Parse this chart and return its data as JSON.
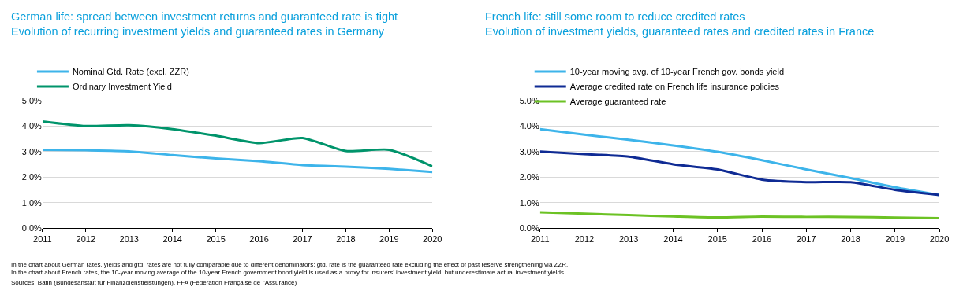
{
  "chart_data": [
    {
      "type": "line",
      "title": "German life: spread between investment returns and guaranteed rate is tight",
      "subtitle": "Evolution of recurring investment yields and guaranteed rates in Germany",
      "x": [
        2011,
        2012,
        2013,
        2014,
        2015,
        2016,
        2017,
        2018,
        2019,
        2020
      ],
      "xlim": [
        2011,
        2020
      ],
      "xticks": [
        2011,
        2012,
        2013,
        2014,
        2015,
        2016,
        2017,
        2018,
        2019,
        2020
      ],
      "ylim": [
        0,
        5
      ],
      "yticks": [
        {
          "value": 0,
          "label": "0.0%"
        },
        {
          "value": 1,
          "label": "1.0%"
        },
        {
          "value": 2,
          "label": "2.0%"
        },
        {
          "value": 3,
          "label": "3.0%"
        },
        {
          "value": 4,
          "label": "4.0%"
        },
        {
          "value": 5,
          "label": "5.0%"
        }
      ],
      "grid": "y",
      "legend": "top left",
      "marker": "none",
      "line_style": "solid",
      "series": [
        {
          "name": "Nominal Gtd. Rate (excl. ZZR)",
          "color": "#3db4ea",
          "values": [
            3.07,
            3.05,
            3.01,
            2.86,
            2.73,
            2.62,
            2.47,
            2.41,
            2.32,
            2.2
          ]
        },
        {
          "name": "Ordinary Investment Yield",
          "color": "#00946b",
          "values": [
            4.18,
            4.0,
            4.03,
            3.88,
            3.62,
            3.33,
            3.53,
            3.02,
            3.07,
            2.42
          ]
        }
      ],
      "annotations": [
        "In the chart about German rates, yields and gtd. rates are not fully comparable due to different denominators; gtd. rate is the guaranteed rate excluding the effect of past reserve strengthening via ZZR. In the chart about French rates, the 10-year moving average of the 10-year French government bond yield is used as a proxy for insurers’ investment yield, but underestimate actual investment yields",
        "Sources: Bafin (Bundesanstalt für Finanzdienstleistungen), FFA (Fédération Française de l'Assurance)"
      ]
    },
    {
      "type": "line",
      "title": "French life: still some room to reduce credited rates",
      "subtitle": "Evolution of investment yields, guaranteed rates and credited rates in France",
      "x": [
        2011,
        2012,
        2013,
        2014,
        2015,
        2016,
        2017,
        2018,
        2019,
        2020
      ],
      "xlim": [
        2011,
        2020
      ],
      "xticks": [
        2011,
        2012,
        2013,
        2014,
        2015,
        2016,
        2017,
        2018,
        2019,
        2020
      ],
      "ylim": [
        0,
        5
      ],
      "yticks": [
        {
          "value": 0,
          "label": "0.0%"
        },
        {
          "value": 1,
          "label": "1.0%"
        },
        {
          "value": 2,
          "label": "2.0%"
        },
        {
          "value": 3,
          "label": "3.0%"
        },
        {
          "value": 4,
          "label": "4.0%"
        },
        {
          "value": 5,
          "label": "5.0%"
        }
      ],
      "grid": "y",
      "legend": "top left",
      "marker": "none",
      "line_style": "solid",
      "series": [
        {
          "name": "10-year moving avg. of 10-year French gov. bonds yield",
          "color": "#3db4ea",
          "values": [
            3.88,
            3.66,
            3.46,
            3.24,
            2.99,
            2.66,
            2.3,
            1.96,
            1.6,
            1.3
          ]
        },
        {
          "name": "Average credited rate on French life insurance policies",
          "color": "#0f2b94",
          "values": [
            3.0,
            2.9,
            2.8,
            2.5,
            2.3,
            1.9,
            1.8,
            1.8,
            1.5,
            1.3
          ]
        },
        {
          "name": "Average guaranteed rate",
          "color": "#6cc224",
          "values": [
            0.62,
            0.57,
            0.51,
            0.46,
            0.42,
            0.45,
            0.44,
            0.44,
            0.41,
            0.39
          ]
        }
      ]
    }
  ]
}
